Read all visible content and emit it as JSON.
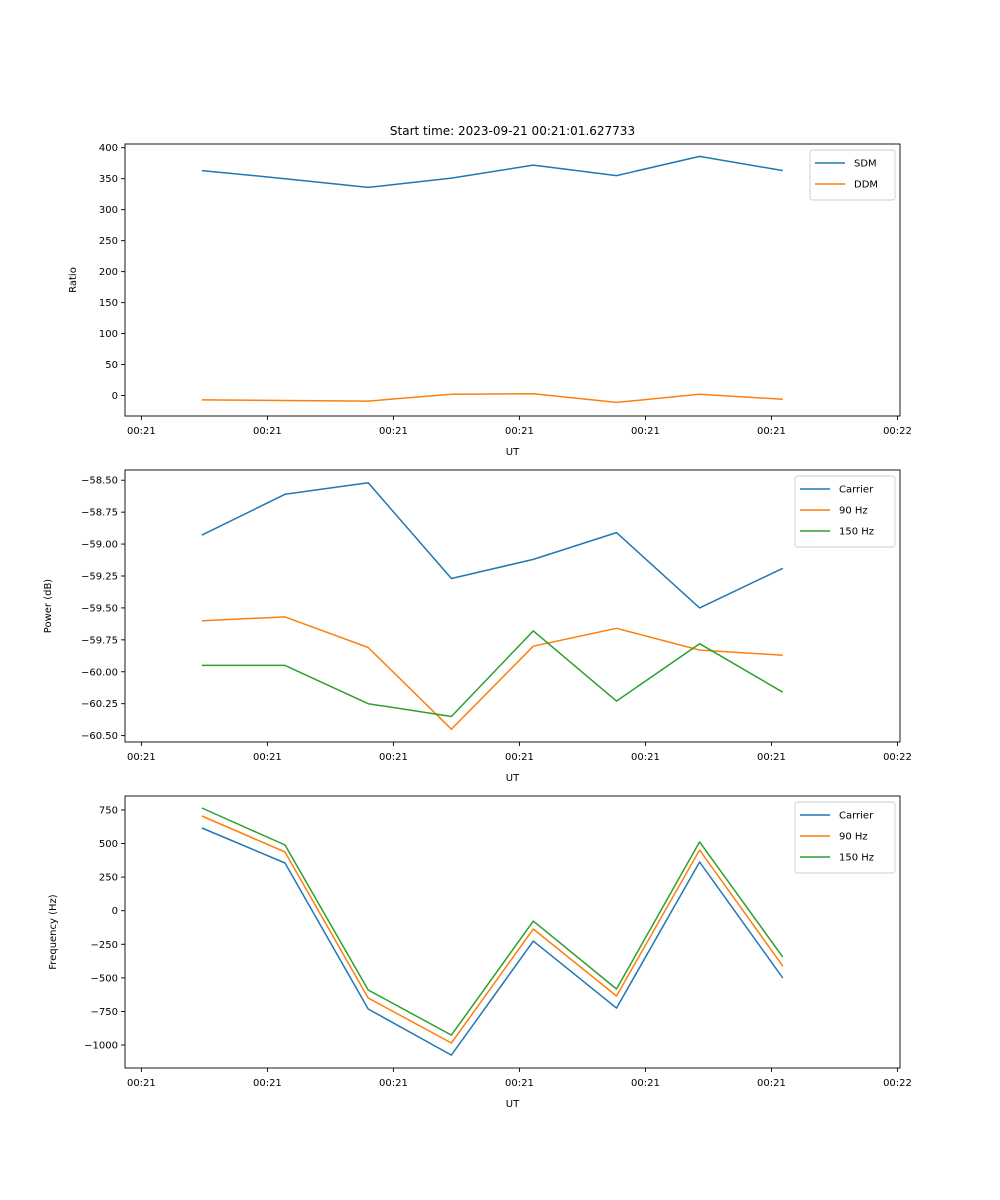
{
  "figure": {
    "title": "Start time: 2023-09-21 00:21:01.627733"
  },
  "chart_data": [
    {
      "type": "line",
      "title": "Start time: 2023-09-21 00:21:01.627733",
      "xlabel": "UT",
      "ylabel": "Ratio",
      "x_tick_labels": [
        "00:21",
        "00:21",
        "00:21",
        "00:21",
        "00:21",
        "00:21",
        "00:22"
      ],
      "x_tick_positions": [
        0,
        1,
        2,
        3,
        4,
        5,
        6
      ],
      "xlim": [
        -0.13,
        6.02
      ],
      "x": [
        0.48,
        1.14,
        1.8,
        2.46,
        3.11,
        3.77,
        4.43,
        5.09
      ],
      "ylim": [
        -33,
        406
      ],
      "y_ticks": [
        0,
        50,
        100,
        150,
        200,
        250,
        300,
        350,
        400
      ],
      "y_tick_labels": [
        "0",
        "50",
        "100",
        "150",
        "200",
        "250",
        "300",
        "350",
        "400"
      ],
      "grid": false,
      "legend": "top-right",
      "series": [
        {
          "name": "SDM",
          "color": "#1f77b4",
          "values": [
            363,
            350,
            336,
            351,
            372,
            355,
            386,
            363
          ]
        },
        {
          "name": "DDM",
          "color": "#ff7f0e",
          "values": [
            -7,
            -8,
            -9,
            2,
            3,
            -11,
            2,
            -6
          ]
        }
      ]
    },
    {
      "type": "line",
      "title": "",
      "xlabel": "UT",
      "ylabel": "Power (dB)",
      "x_tick_labels": [
        "00:21",
        "00:21",
        "00:21",
        "00:21",
        "00:21",
        "00:21",
        "00:22"
      ],
      "x_tick_positions": [
        0,
        1,
        2,
        3,
        4,
        5,
        6
      ],
      "xlim": [
        -0.13,
        6.02
      ],
      "x": [
        0.48,
        1.14,
        1.8,
        2.46,
        3.11,
        3.77,
        4.43,
        5.09
      ],
      "ylim": [
        -60.55,
        -58.42
      ],
      "y_ticks": [
        -60.5,
        -60.25,
        -60.0,
        -59.75,
        -59.5,
        -59.25,
        -59.0,
        -58.75,
        -58.5
      ],
      "y_tick_labels": [
        "−60.50",
        "−60.25",
        "−60.00",
        "−59.75",
        "−59.50",
        "−59.25",
        "−59.00",
        "−58.75",
        "−58.50"
      ],
      "grid": false,
      "legend": "top-right",
      "series": [
        {
          "name": "Carrier",
          "color": "#1f77b4",
          "values": [
            -58.93,
            -58.61,
            -58.52,
            -59.27,
            -59.12,
            -58.91,
            -59.5,
            -59.19
          ]
        },
        {
          "name": "90 Hz",
          "color": "#ff7f0e",
          "values": [
            -59.6,
            -59.57,
            -59.81,
            -60.45,
            -59.8,
            -59.66,
            -59.83,
            -59.87
          ]
        },
        {
          "name": "150 Hz",
          "color": "#2ca02c",
          "values": [
            -59.95,
            -59.95,
            -60.25,
            -60.35,
            -59.68,
            -60.23,
            -59.78,
            -60.16
          ]
        }
      ]
    },
    {
      "type": "line",
      "title": "",
      "xlabel": "UT",
      "ylabel": "Frequency (Hz)",
      "x_tick_labels": [
        "00:21",
        "00:21",
        "00:21",
        "00:21",
        "00:21",
        "00:21",
        "00:22"
      ],
      "x_tick_positions": [
        0,
        1,
        2,
        3,
        4,
        5,
        6
      ],
      "xlim": [
        -0.13,
        6.02
      ],
      "x": [
        0.48,
        1.14,
        1.8,
        2.46,
        3.11,
        3.77,
        4.43,
        5.09
      ],
      "ylim": [
        -1171,
        854
      ],
      "y_ticks": [
        -1000,
        -750,
        -500,
        -250,
        0,
        250,
        500,
        750
      ],
      "y_tick_labels": [
        "−1000",
        "−750",
        "−500",
        "−250",
        "0",
        "250",
        "500",
        "750"
      ],
      "grid": false,
      "legend": "top-right",
      "series": [
        {
          "name": "Carrier",
          "color": "#1f77b4",
          "values": [
            616,
            355,
            -732,
            -1075,
            -226,
            -725,
            363,
            -501
          ]
        },
        {
          "name": "90 Hz",
          "color": "#ff7f0e",
          "values": [
            705,
            437,
            -650,
            -985,
            -136,
            -635,
            452,
            -412
          ]
        },
        {
          "name": "150 Hz",
          "color": "#2ca02c",
          "values": [
            765,
            489,
            -590,
            -926,
            -77,
            -583,
            512,
            -345
          ]
        }
      ]
    }
  ]
}
